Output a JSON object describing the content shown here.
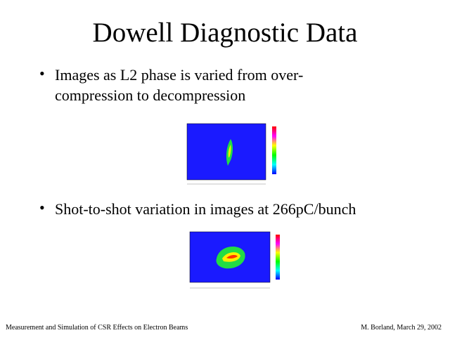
{
  "title": "Dowell Diagnostic Data",
  "bullets": [
    {
      "lines": [
        "Images as L2 phase is varied from over-",
        "compression to decompression"
      ]
    },
    {
      "lines": [
        "Shot-to-shot variation in images at 266pC/bunch"
      ]
    }
  ],
  "footer": {
    "left": "Measurement and Simulation of CSR Effects on Electron Beams",
    "right": "M. Borland, March 29, 2002"
  }
}
